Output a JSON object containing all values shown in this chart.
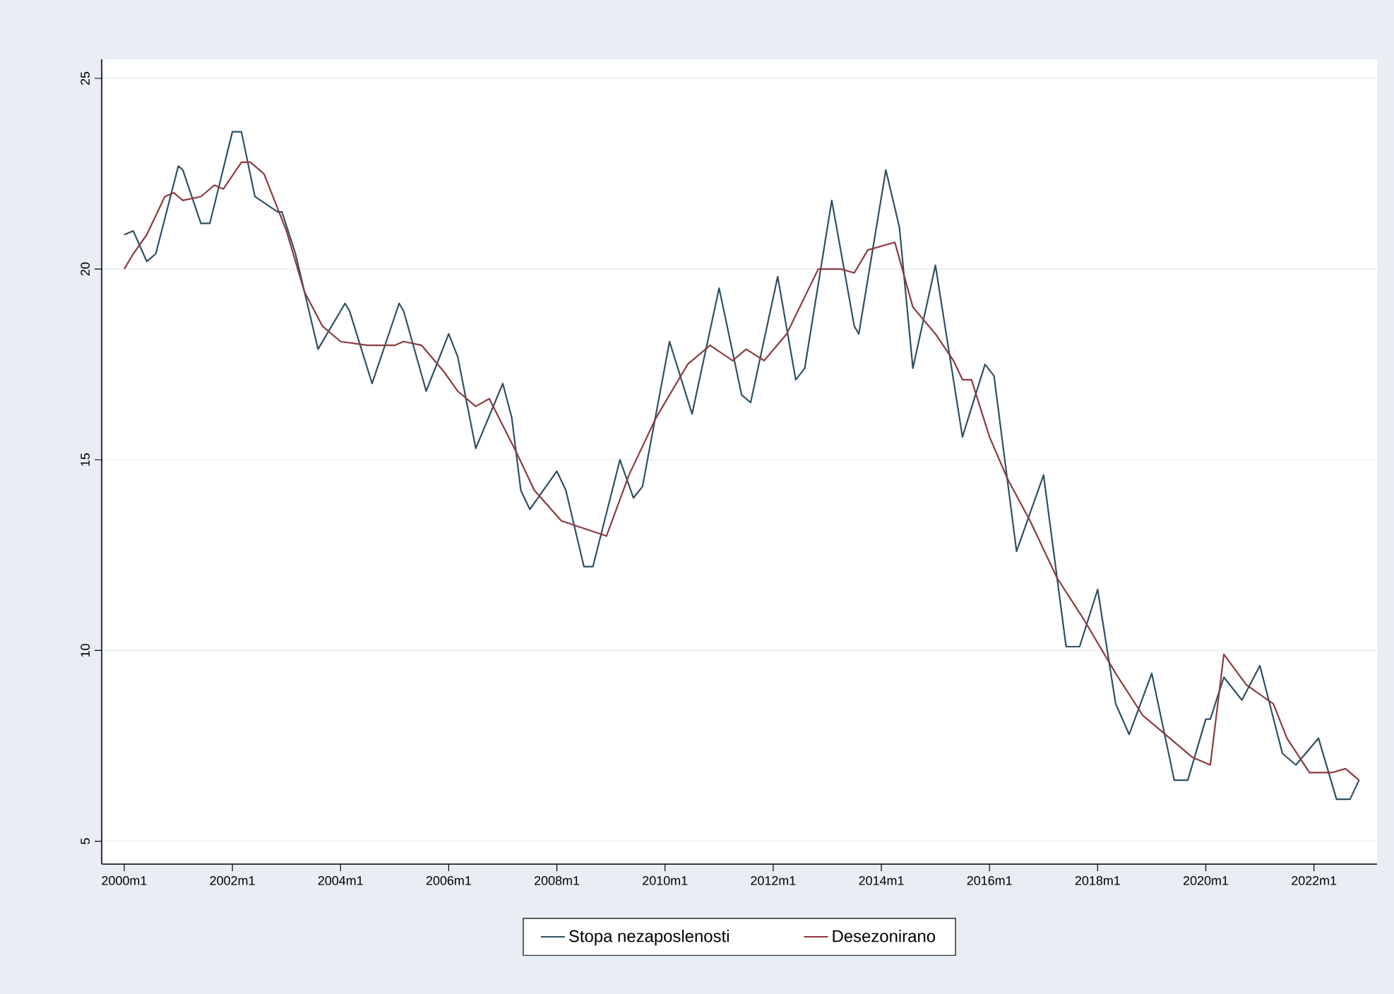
{
  "chart_data": {
    "type": "line",
    "xlim": [
      "1999-08",
      "2023-03"
    ],
    "ylim": [
      4.4,
      25.5
    ],
    "xticks": [
      {
        "value": "2000-01",
        "label": "2000m1"
      },
      {
        "value": "2002-01",
        "label": "2002m1"
      },
      {
        "value": "2004-01",
        "label": "2004m1"
      },
      {
        "value": "2006-01",
        "label": "2006m1"
      },
      {
        "value": "2008-01",
        "label": "2008m1"
      },
      {
        "value": "2010-01",
        "label": "2010m1"
      },
      {
        "value": "2012-01",
        "label": "2012m1"
      },
      {
        "value": "2014-01",
        "label": "2014m1"
      },
      {
        "value": "2016-01",
        "label": "2016m1"
      },
      {
        "value": "2018-01",
        "label": "2018m1"
      },
      {
        "value": "2020-01",
        "label": "2020m1"
      },
      {
        "value": "2022-01",
        "label": "2022m1"
      }
    ],
    "yticks": [
      5,
      10,
      15,
      20,
      25
    ],
    "grid": "y",
    "legend": "bottom",
    "marker": "none",
    "line_style": "solid",
    "series": [
      {
        "name": "Stopa nezaposlenosti",
        "color": "#2f4f62",
        "x": [
          "2000-01",
          "2000-03",
          "2000-06",
          "2000-08",
          "2001-01",
          "2001-02",
          "2001-06",
          "2001-08",
          "2002-01",
          "2002-03",
          "2002-06",
          "2002-11",
          "2002-12",
          "2003-03",
          "2003-08",
          "2004-02",
          "2004-03",
          "2004-08",
          "2005-02",
          "2005-03",
          "2005-08",
          "2006-01",
          "2006-03",
          "2006-07",
          "2007-01",
          "2007-03",
          "2007-05",
          "2007-07",
          "2008-01",
          "2008-03",
          "2008-07",
          "2008-09",
          "2009-03",
          "2009-06",
          "2009-08",
          "2010-02",
          "2010-07",
          "2011-01",
          "2011-06",
          "2011-08",
          "2012-02",
          "2012-06",
          "2012-08",
          "2013-02",
          "2013-07",
          "2013-08",
          "2014-02",
          "2014-05",
          "2014-08",
          "2015-01",
          "2015-07",
          "2015-12",
          "2016-02",
          "2016-07",
          "2017-01",
          "2017-06",
          "2017-09",
          "2018-01",
          "2018-05",
          "2018-08",
          "2019-01",
          "2019-06",
          "2019-09",
          "2020-01",
          "2020-02",
          "2020-05",
          "2020-09",
          "2021-01",
          "2021-06",
          "2021-09",
          "2022-02",
          "2022-06",
          "2022-09",
          "2022-11"
        ],
        "values": [
          20.9,
          21.0,
          20.2,
          20.4,
          22.7,
          22.6,
          21.2,
          21.2,
          23.6,
          23.6,
          21.9,
          21.5,
          21.5,
          20.4,
          17.9,
          19.1,
          18.9,
          17.0,
          19.1,
          18.9,
          16.8,
          18.3,
          17.7,
          15.3,
          17.0,
          16.1,
          14.2,
          13.7,
          14.7,
          14.2,
          12.2,
          12.2,
          15.0,
          14.0,
          14.3,
          18.1,
          16.2,
          19.5,
          16.7,
          16.5,
          19.8,
          17.1,
          17.4,
          21.8,
          18.5,
          18.3,
          22.6,
          21.1,
          17.4,
          20.1,
          15.6,
          17.5,
          17.2,
          12.6,
          14.6,
          10.1,
          10.1,
          11.6,
          8.6,
          7.8,
          9.4,
          6.6,
          6.6,
          8.2,
          8.2,
          9.3,
          8.7,
          9.6,
          7.3,
          7.0,
          7.7,
          6.1,
          6.1,
          6.6
        ]
      },
      {
        "name": "Desezonirano",
        "color": "#8b3a3f",
        "x": [
          "2000-01",
          "2000-03",
          "2000-06",
          "2000-10",
          "2000-12",
          "2001-02",
          "2001-06",
          "2001-09",
          "2001-11",
          "2002-03",
          "2002-05",
          "2002-08",
          "2003-01",
          "2003-05",
          "2003-09",
          "2004-01",
          "2004-07",
          "2005-01",
          "2005-03",
          "2005-07",
          "2005-12",
          "2006-03",
          "2006-07",
          "2006-10",
          "2007-04",
          "2007-08",
          "2008-02",
          "2008-07",
          "2008-12",
          "2009-05",
          "2009-11",
          "2010-06",
          "2010-11",
          "2011-04",
          "2011-07",
          "2011-11",
          "2012-04",
          "2012-11",
          "2013-04",
          "2013-07",
          "2013-10",
          "2014-04",
          "2014-08",
          "2015-01",
          "2015-05",
          "2015-07",
          "2015-09",
          "2016-01",
          "2016-05",
          "2016-10",
          "2017-04",
          "2017-10",
          "2018-05",
          "2018-11",
          "2019-05",
          "2019-10",
          "2020-02",
          "2020-05",
          "2020-10",
          "2021-04",
          "2021-07",
          "2021-12",
          "2022-05",
          "2022-08",
          "2022-11"
        ],
        "values": [
          20.0,
          20.4,
          20.9,
          21.9,
          22.0,
          21.8,
          21.9,
          22.2,
          22.1,
          22.8,
          22.8,
          22.5,
          21.0,
          19.4,
          18.5,
          18.1,
          18.0,
          18.0,
          18.1,
          18.0,
          17.3,
          16.8,
          16.4,
          16.6,
          15.2,
          14.2,
          13.4,
          13.2,
          13.0,
          14.6,
          16.1,
          17.5,
          18.0,
          17.6,
          17.9,
          17.6,
          18.3,
          20.0,
          20.0,
          19.9,
          20.5,
          20.7,
          19.0,
          18.3,
          17.6,
          17.1,
          17.1,
          15.6,
          14.5,
          13.4,
          11.9,
          10.8,
          9.4,
          8.3,
          7.7,
          7.2,
          7.0,
          9.9,
          9.1,
          8.6,
          7.7,
          6.8,
          6.8,
          6.9,
          6.6
        ]
      }
    ]
  }
}
